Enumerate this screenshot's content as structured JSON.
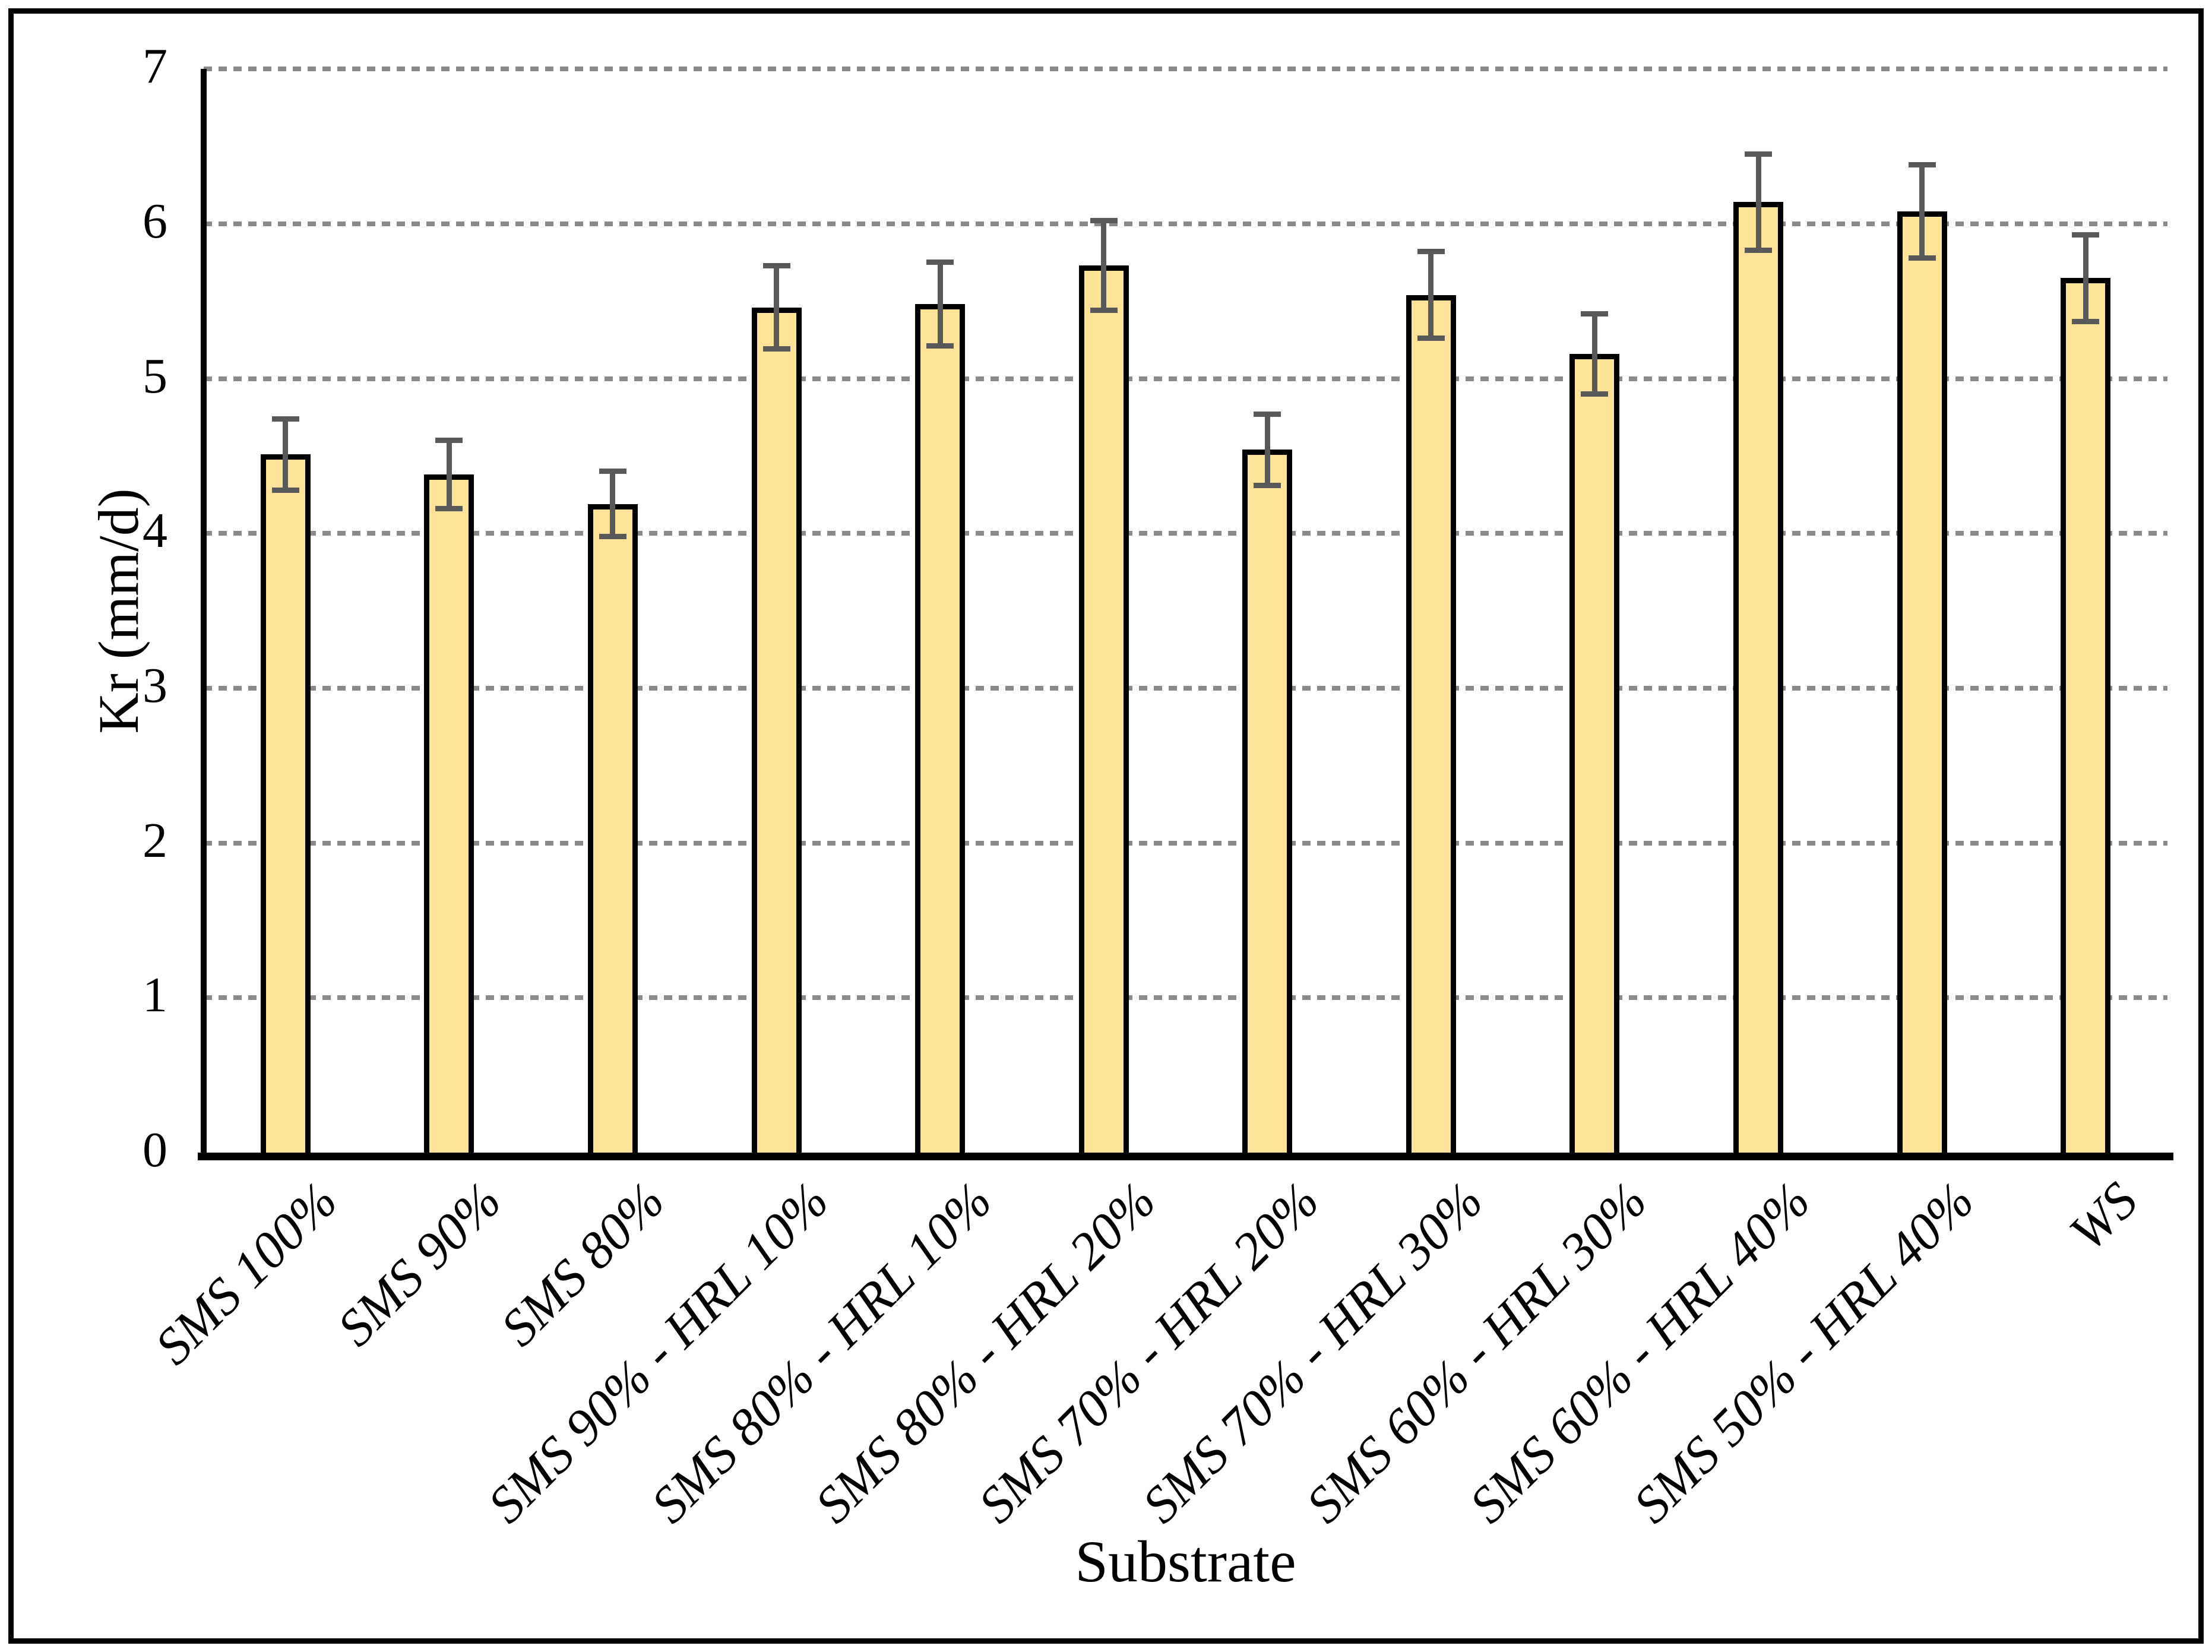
{
  "figure": {
    "background": "#FFFFFF",
    "frame_color": "#000000"
  },
  "chart_data": {
    "type": "bar",
    "title": "",
    "xlabel": "Substrate",
    "ylabel": "Kr (mm/d)",
    "categories": [
      "SMS 100%",
      "SMS 90%",
      "SMS 80%",
      "SMS 90% - HRL 10%",
      "SMS 80% - HRL 10%",
      "SMS 80% - HRL 20%",
      "SMS 70% - HRL 20%",
      "SMS 70% - HRL 30%",
      "SMS 60% - HRL 30%",
      "SMS 60% - HRL 40%",
      "SMS 50% - HRL 40%",
      "WS"
    ],
    "values": [
      4.51,
      4.38,
      4.19,
      5.46,
      5.48,
      5.73,
      4.54,
      5.54,
      5.16,
      6.14,
      6.08,
      5.65
    ],
    "error_bars": [
      0.23,
      0.22,
      0.21,
      0.27,
      0.27,
      0.29,
      0.23,
      0.28,
      0.26,
      0.31,
      0.3,
      0.28
    ],
    "ylim": [
      0,
      7
    ],
    "yticks": [
      0,
      1,
      2,
      3,
      4,
      5,
      6,
      7
    ],
    "grid": "horizontal-dotted",
    "legend": "none",
    "bar_fill": "#FFE399",
    "bar_border": "#000000",
    "error_color": "#595959",
    "gridline_color": "#8A8A8A",
    "axis_color": "#000000"
  }
}
